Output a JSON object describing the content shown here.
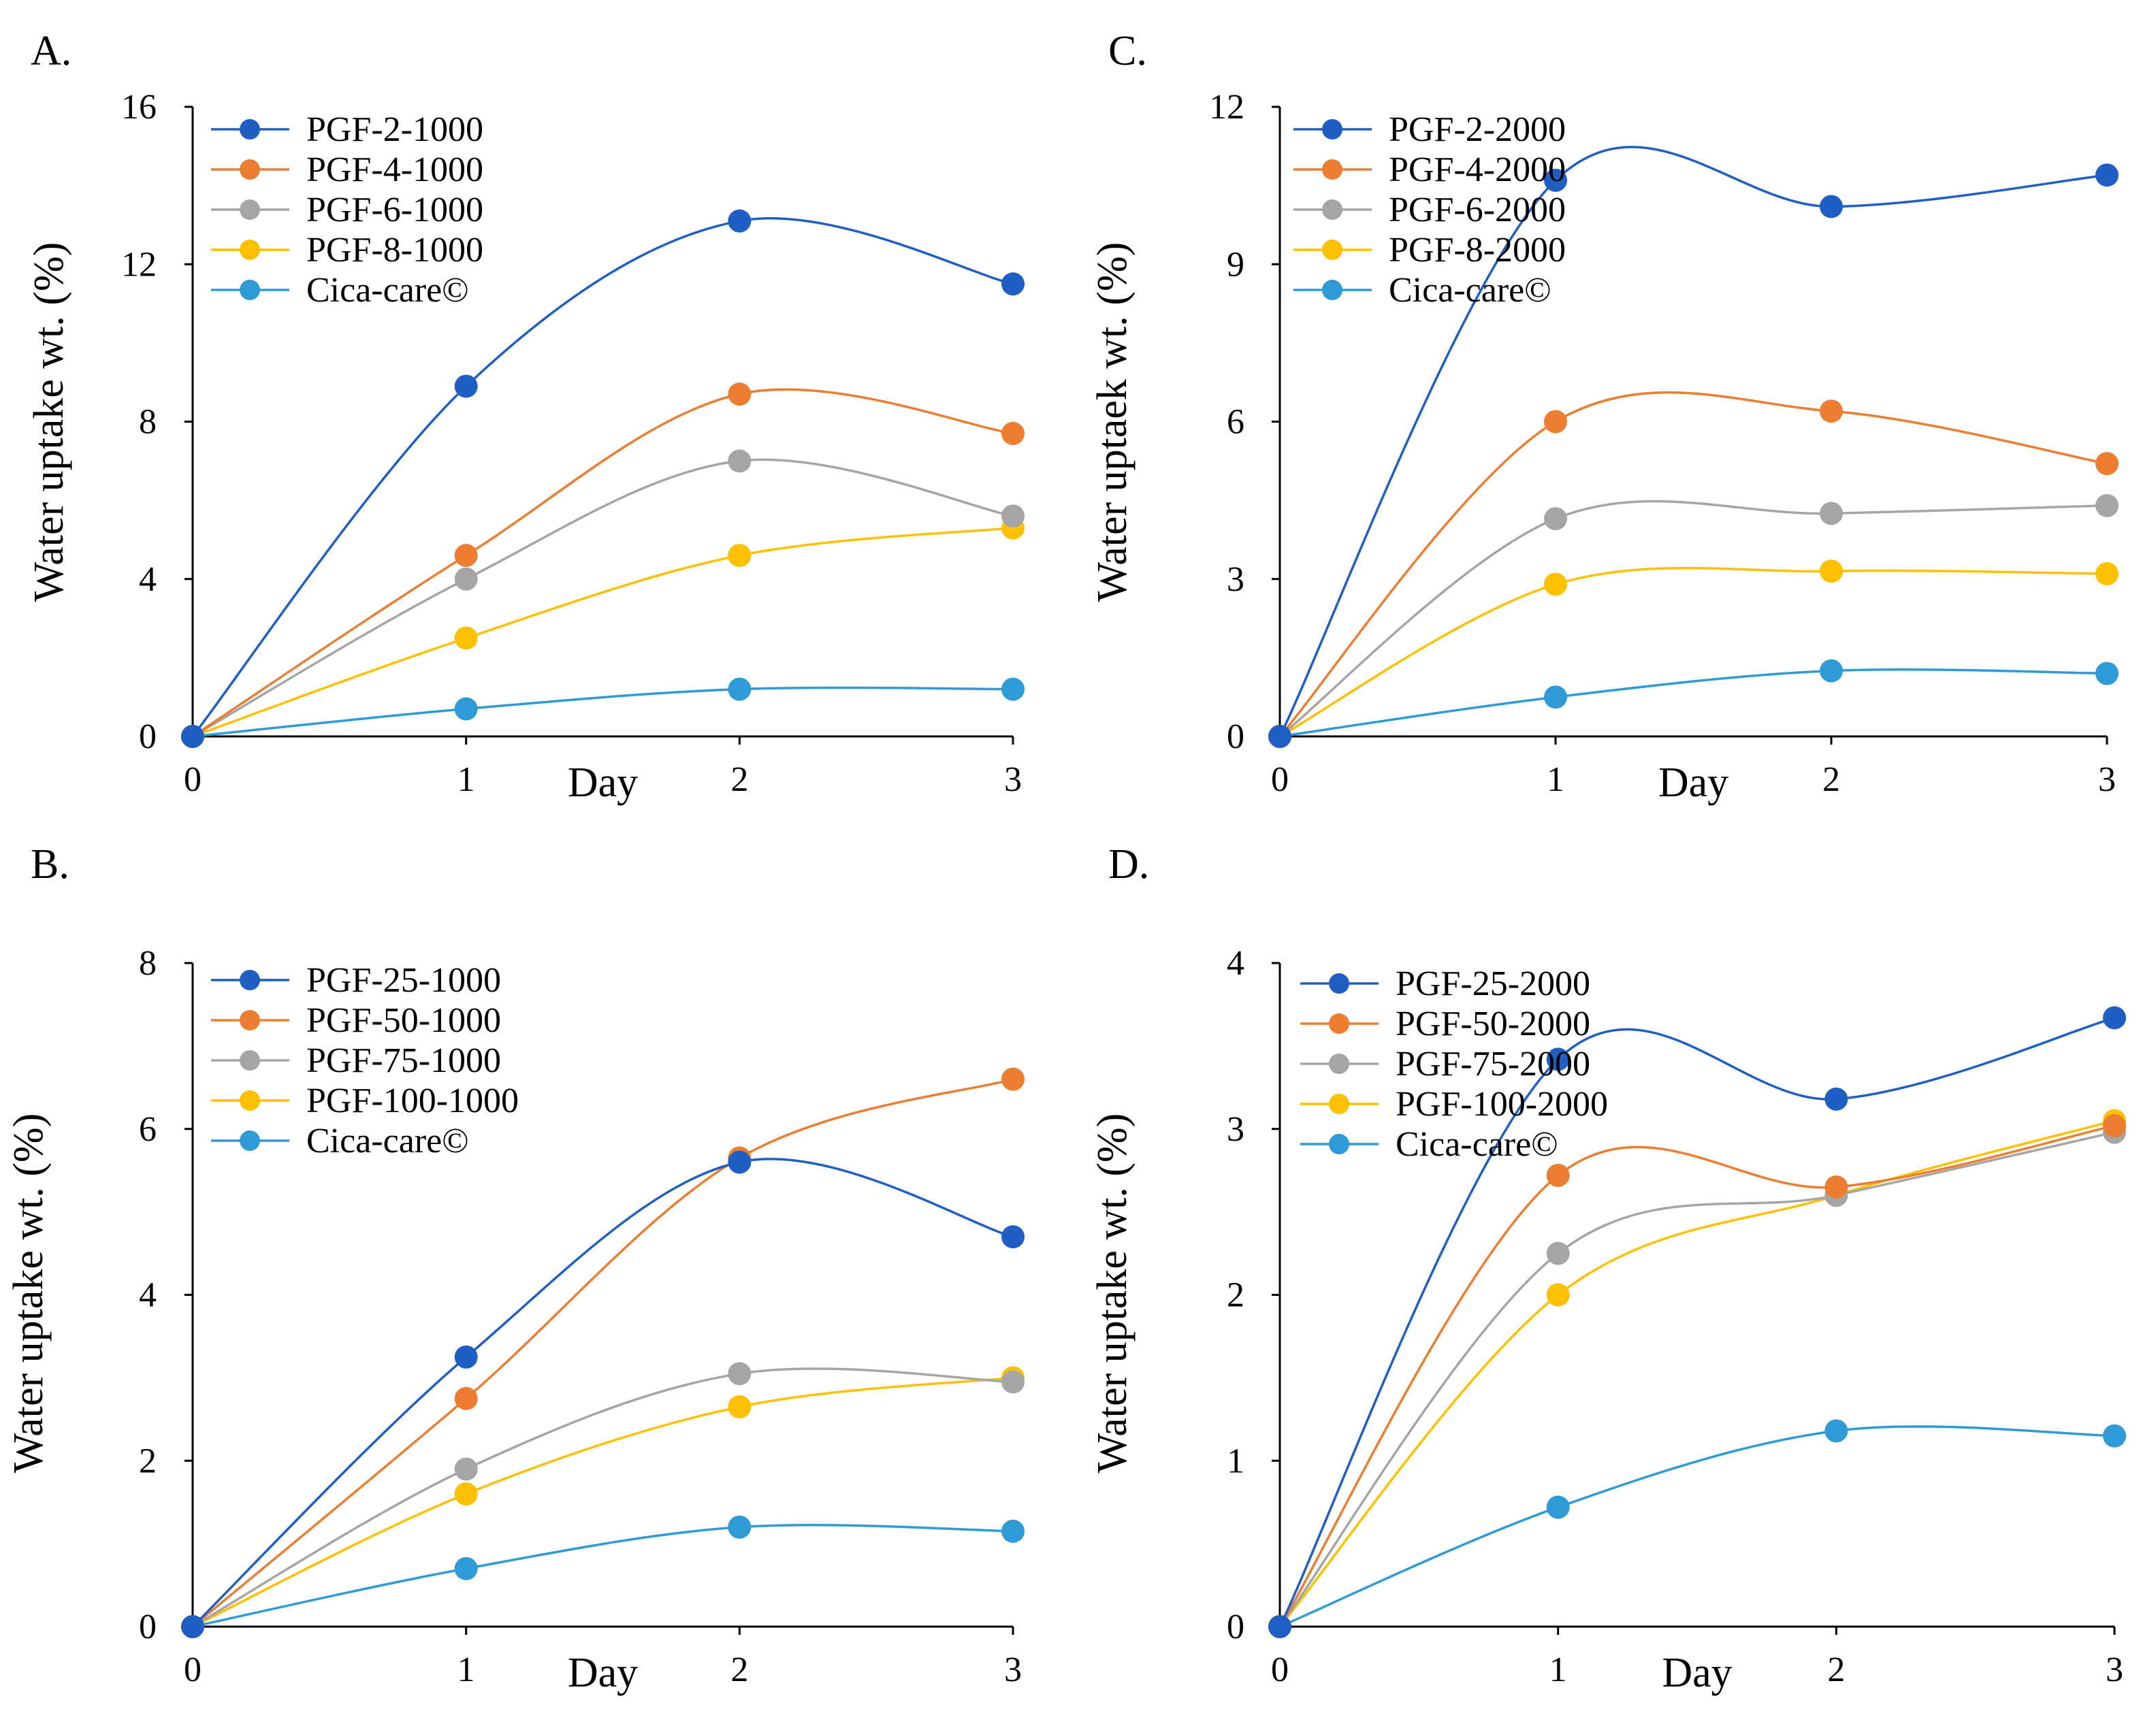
{
  "chart_data": [
    {
      "panel": "A.",
      "type": "line",
      "xlabel": "Day",
      "ylabel": "Water uptake wt. (%)",
      "x": [
        0,
        1,
        2,
        3
      ],
      "xticks": [
        "0",
        "1",
        "2",
        "3"
      ],
      "ylim": [
        0,
        16
      ],
      "yticks": [
        0,
        4,
        8,
        12,
        16
      ],
      "legend_position": "top-left",
      "series": [
        {
          "name": "PGF-2-1000",
          "color": "#1F5FC4",
          "values": [
            0,
            8.9,
            13.1,
            11.5
          ]
        },
        {
          "name": "PGF-4-1000",
          "color": "#ED7D31",
          "values": [
            0,
            4.6,
            8.7,
            7.7
          ]
        },
        {
          "name": "PGF-6-1000",
          "color": "#A5A5A5",
          "values": [
            0,
            4.0,
            7.0,
            5.6
          ]
        },
        {
          "name": "PGF-8-1000",
          "color": "#FFC000",
          "values": [
            0,
            2.5,
            4.6,
            5.3
          ]
        },
        {
          "name": "Cica-care©",
          "color": "#2E9BD6",
          "values": [
            0,
            0.7,
            1.2,
            1.2
          ]
        }
      ]
    },
    {
      "panel": "C.",
      "type": "line",
      "xlabel": "Day",
      "ylabel": "Water uptaek wt. (%)",
      "x": [
        0,
        1,
        2,
        3
      ],
      "xticks": [
        "0",
        "1",
        "2",
        "3"
      ],
      "ylim": [
        0,
        12
      ],
      "yticks": [
        0,
        3,
        6,
        9,
        12
      ],
      "legend_position": "top-left",
      "series": [
        {
          "name": "PGF-2-2000",
          "color": "#1F5FC4",
          "values": [
            0,
            10.6,
            10.1,
            10.7
          ]
        },
        {
          "name": "PGF-4-2000",
          "color": "#ED7D31",
          "values": [
            0,
            6.0,
            6.2,
            5.2
          ]
        },
        {
          "name": "PGF-6-2000",
          "color": "#A5A5A5",
          "values": [
            0,
            4.15,
            4.25,
            4.4
          ]
        },
        {
          "name": "PGF-8-2000",
          "color": "#FFC000",
          "values": [
            0,
            2.9,
            3.15,
            3.1
          ]
        },
        {
          "name": "Cica-care©",
          "color": "#2E9BD6",
          "values": [
            0,
            0.75,
            1.25,
            1.2
          ]
        }
      ]
    },
    {
      "panel": "B.",
      "type": "line",
      "xlabel": "Day",
      "ylabel": "Water uptake wt. (%)",
      "x": [
        0,
        1,
        2,
        3
      ],
      "xticks": [
        "0",
        "1",
        "2",
        "3"
      ],
      "ylim": [
        0,
        8
      ],
      "yticks": [
        0,
        2,
        4,
        6,
        8
      ],
      "legend_position": "top-left",
      "series": [
        {
          "name": "PGF-25-1000",
          "color": "#1F5FC4",
          "values": [
            0,
            3.25,
            5.6,
            4.7
          ]
        },
        {
          "name": "PGF-50-1000",
          "color": "#ED7D31",
          "values": [
            0,
            2.75,
            5.65,
            6.6
          ]
        },
        {
          "name": "PGF-75-1000",
          "color": "#A5A5A5",
          "values": [
            0,
            1.9,
            3.05,
            2.95
          ]
        },
        {
          "name": "PGF-100-1000",
          "color": "#FFC000",
          "values": [
            0,
            1.6,
            2.65,
            3.0
          ]
        },
        {
          "name": "Cica-care©",
          "color": "#2E9BD6",
          "values": [
            0,
            0.7,
            1.2,
            1.15
          ]
        }
      ]
    },
    {
      "panel": "D.",
      "type": "line",
      "xlabel": "Day",
      "ylabel": "Water uptake wt.  (%)",
      "x": [
        0,
        1,
        2,
        3
      ],
      "xticks": [
        "0",
        "1",
        "2",
        "3"
      ],
      "ylim": [
        0,
        4
      ],
      "yticks": [
        0,
        1,
        2,
        3,
        4
      ],
      "legend_position": "top-left",
      "series": [
        {
          "name": "PGF-25-2000",
          "color": "#1F5FC4",
          "values": [
            0,
            3.42,
            3.18,
            3.67
          ]
        },
        {
          "name": "PGF-50-2000",
          "color": "#ED7D31",
          "values": [
            0,
            2.72,
            2.65,
            3.02
          ]
        },
        {
          "name": "PGF-75-2000",
          "color": "#A5A5A5",
          "values": [
            0,
            2.25,
            2.6,
            2.98
          ]
        },
        {
          "name": "PGF-100-2000",
          "color": "#FFC000",
          "values": [
            0,
            2.0,
            2.6,
            3.05
          ]
        },
        {
          "name": "Cica-care©",
          "color": "#2E9BD6",
          "values": [
            0,
            0.72,
            1.18,
            1.15
          ]
        }
      ]
    }
  ]
}
